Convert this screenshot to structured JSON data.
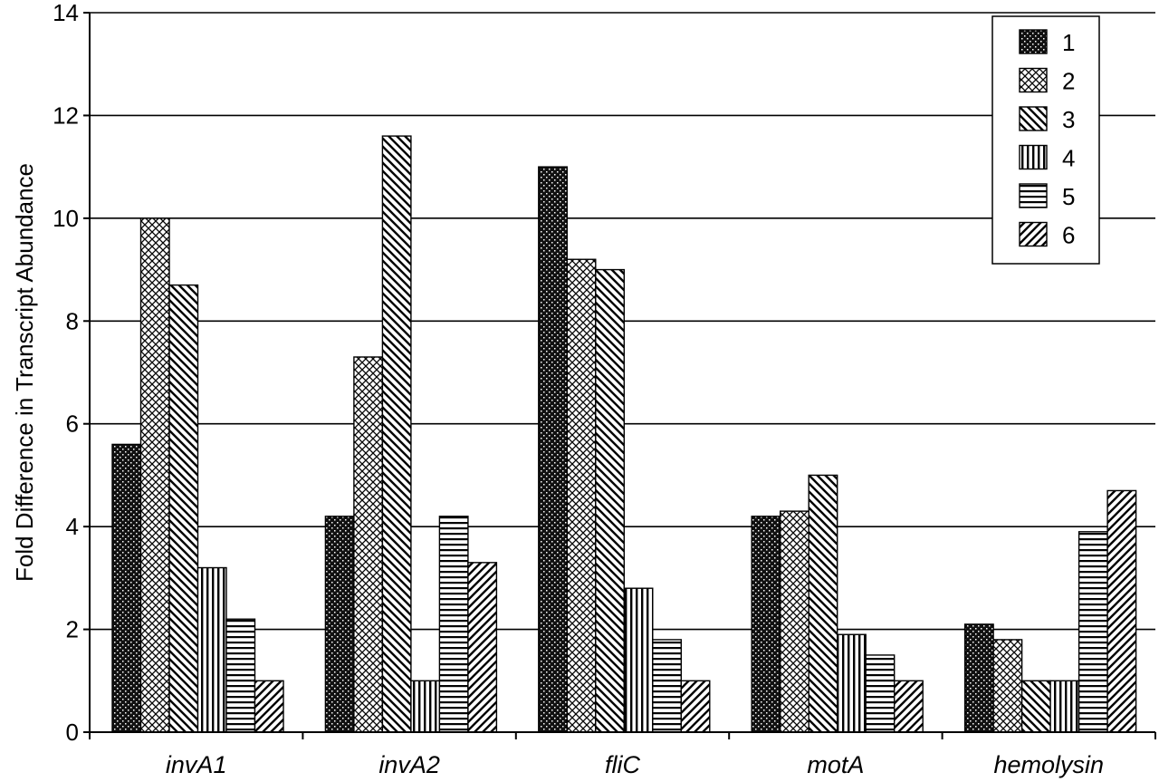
{
  "chart_data": {
    "type": "bar",
    "title": "",
    "xlabel": "",
    "ylabel": "Fold Difference in Transcript Abundance",
    "ylim": [
      0,
      14
    ],
    "yticks": [
      0,
      2,
      4,
      6,
      8,
      10,
      12,
      14
    ],
    "grid": true,
    "legend_position": "top-right",
    "categories": [
      "invA1",
      "invA2",
      "fliC",
      "motA",
      "hemolysin"
    ],
    "series": [
      {
        "name": "1",
        "pattern": "dense-dots",
        "values": [
          5.6,
          4.2,
          11.0,
          4.2,
          2.1
        ]
      },
      {
        "name": "2",
        "pattern": "crosshatch",
        "values": [
          10.0,
          7.3,
          9.2,
          4.3,
          1.8
        ]
      },
      {
        "name": "3",
        "pattern": "wide-diagonal-down",
        "values": [
          8.7,
          11.6,
          9.0,
          5.0,
          1.0
        ]
      },
      {
        "name": "4",
        "pattern": "vertical-lines",
        "values": [
          3.2,
          1.0,
          2.8,
          1.9,
          1.0
        ]
      },
      {
        "name": "5",
        "pattern": "horizontal-lines",
        "values": [
          2.2,
          4.2,
          1.8,
          1.5,
          3.9
        ]
      },
      {
        "name": "6",
        "pattern": "wide-diagonal-up",
        "values": [
          1.0,
          3.3,
          1.0,
          1.0,
          4.7
        ]
      }
    ]
  }
}
